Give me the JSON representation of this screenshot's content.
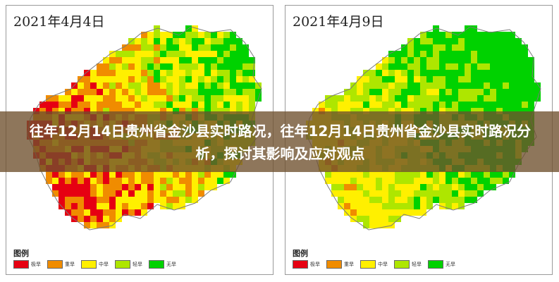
{
  "maps": [
    {
      "title": "2021年4月4日",
      "legend_title": "图例",
      "severity_mix": {
        "extreme": 0.08,
        "severe": 0.25,
        "moderate": 0.27,
        "light": 0.15,
        "none": 0.25
      }
    },
    {
      "title": "2021年4月9日",
      "legend_title": "图例",
      "severity_mix": {
        "extreme": 0.05,
        "severe": 0.1,
        "moderate": 0.2,
        "light": 0.15,
        "none": 0.5
      }
    }
  ],
  "legend": [
    {
      "label": "极旱",
      "color": "#e60012"
    },
    {
      "label": "重旱",
      "color": "#f08c00"
    },
    {
      "label": "中旱",
      "color": "#fff000"
    },
    {
      "label": "轻旱",
      "color": "#aee600"
    },
    {
      "label": "无旱",
      "color": "#00d200"
    }
  ],
  "banner": {
    "headline": "往年12月14日贵州省金沙县实时路况，往年12月14日贵州省金沙县实时路况分析，探讨其影响及应对观点"
  }
}
